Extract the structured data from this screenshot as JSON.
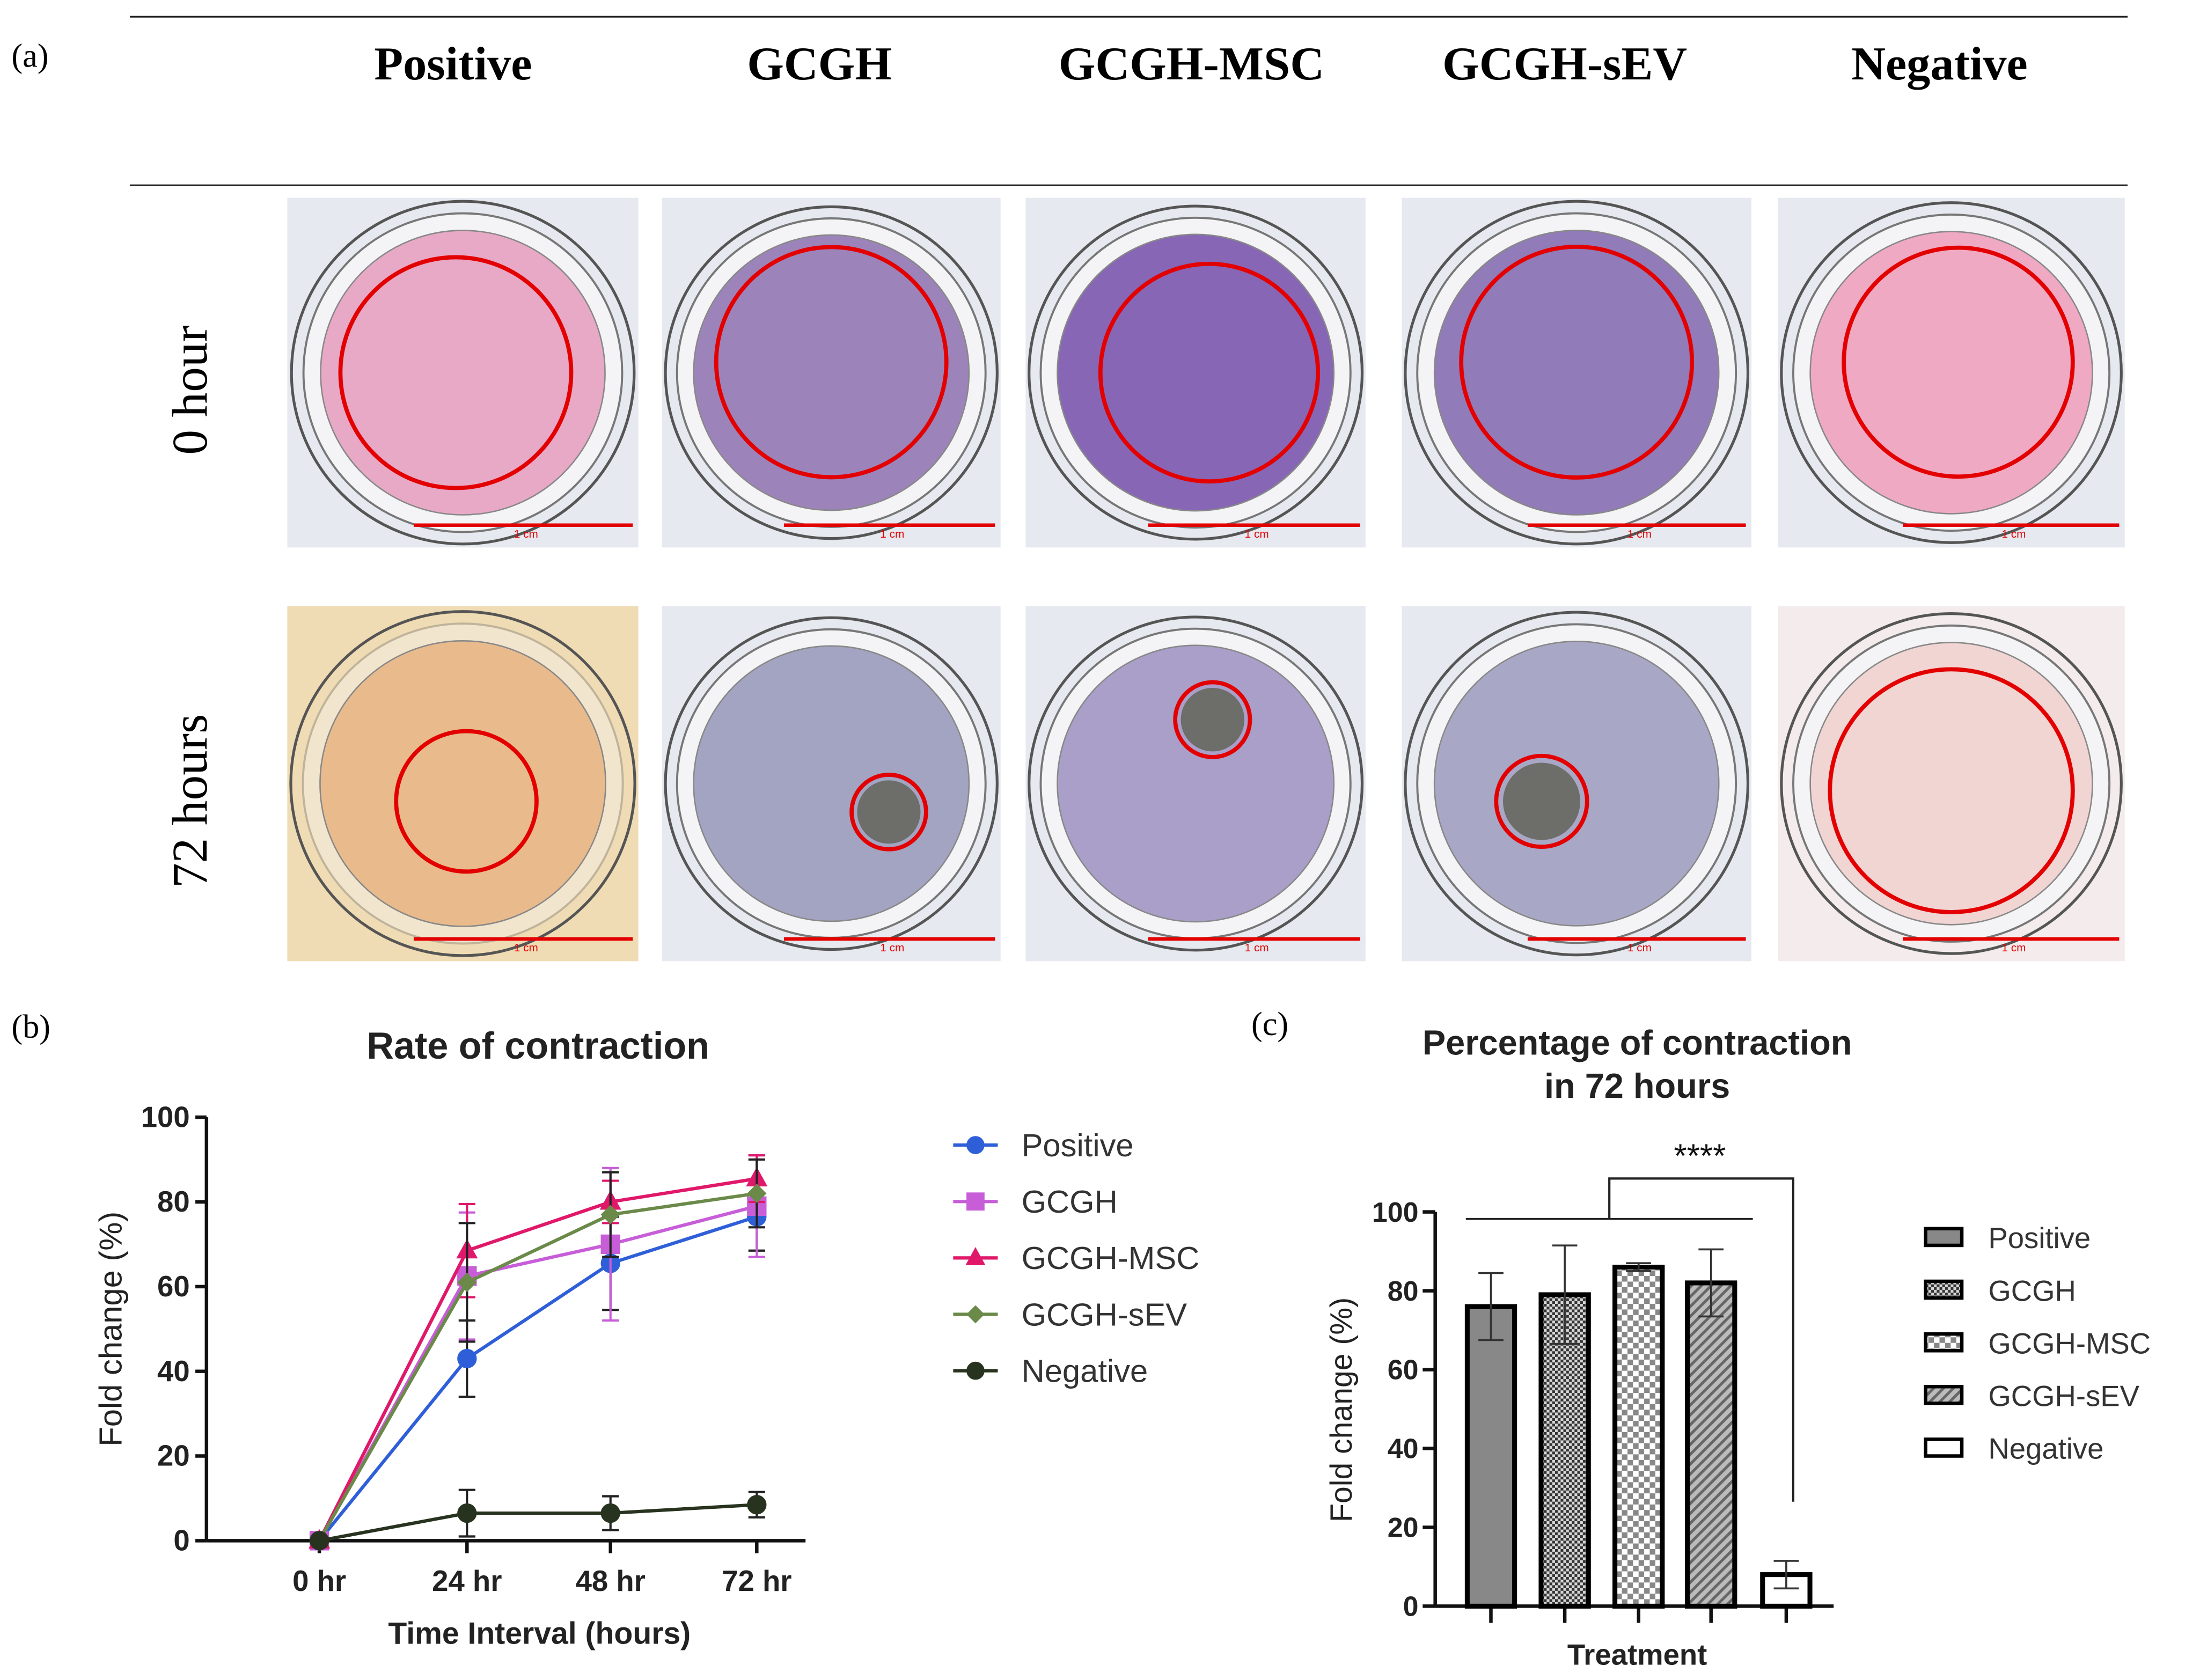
{
  "panel_labels": {
    "a": "(a)",
    "b": "(b)",
    "c": "(c)"
  },
  "panel_a": {
    "columns": [
      "Positive",
      "GCGH",
      "GCGH-MSC",
      "GCGH-sEV",
      "Negative"
    ],
    "rows": [
      "0 hour",
      "72 hours"
    ],
    "scale_bar_label": "1 cm",
    "colors": {
      "row0": [
        "#e7a9c6",
        "#9c84bb",
        "#8866b6",
        "#917bb8",
        "#f0a9c2"
      ],
      "row1": [
        "#e9bb8c",
        "#a3a3c2",
        "#a99fc9",
        "#a8a8c6",
        "#f1d5d3"
      ],
      "annotation": "#e30000"
    }
  },
  "chart_data": [
    {
      "type": "line",
      "title": "Rate of contraction",
      "xlabel": "Time Interval (hours)",
      "ylabel": "Fold change (%)",
      "categories": [
        "0 hr",
        "24 hr",
        "48 hr",
        "72 hr"
      ],
      "ylim": [
        0,
        100
      ],
      "yticks": [
        "0",
        "20",
        "40",
        "60",
        "80",
        "100"
      ],
      "legend_position": "right",
      "series": [
        {
          "name": "Positive",
          "marker": "circle",
          "color": "#2f5fd8",
          "values": [
            0,
            43,
            65.5,
            76.5
          ],
          "errors": [
            0,
            9,
            11,
            8
          ]
        },
        {
          "name": "GCGH",
          "marker": "square",
          "color": "#c75ed8",
          "values": [
            0,
            62.5,
            70,
            79
          ],
          "errors": [
            0,
            15,
            18,
            12
          ]
        },
        {
          "name": "GCGH-MSC",
          "marker": "triangle",
          "color": "#e0186a",
          "values": [
            0,
            68.5,
            80,
            85.5
          ],
          "errors": [
            0,
            11,
            5,
            5.5
          ]
        },
        {
          "name": "GCGH-sEV",
          "marker": "diamond",
          "color": "#6b8a4a",
          "values": [
            0,
            61,
            77,
            82
          ],
          "errors": [
            0,
            14,
            10,
            8
          ]
        },
        {
          "name": "Negative",
          "marker": "circle",
          "color": "#28331f",
          "values": [
            0,
            6.5,
            6.5,
            8.5
          ],
          "errors": [
            0,
            5.5,
            4,
            3
          ]
        }
      ]
    },
    {
      "type": "bar",
      "title": [
        "Percentage of contraction",
        "in 72 hours"
      ],
      "xlabel": "Treatment",
      "ylabel": "Fold change (%)",
      "categories": [
        "Positive",
        "GCGH",
        "GCGH-MSC",
        "GCGH-sEV",
        "Negative"
      ],
      "values": [
        76,
        79,
        86,
        82,
        8
      ],
      "errors": [
        8.5,
        12.5,
        1,
        8.5,
        3.5
      ],
      "fills": [
        "solid-grey",
        "fine-check",
        "checker",
        "diagonal-hatch",
        "white"
      ],
      "ylim": [
        0,
        100
      ],
      "yticks": [
        "0",
        "20",
        "40",
        "60",
        "80",
        "100"
      ],
      "legend_position": "right",
      "significance": {
        "label": "****",
        "comparison": "Positive–GCGH-sEV vs Negative"
      }
    }
  ]
}
